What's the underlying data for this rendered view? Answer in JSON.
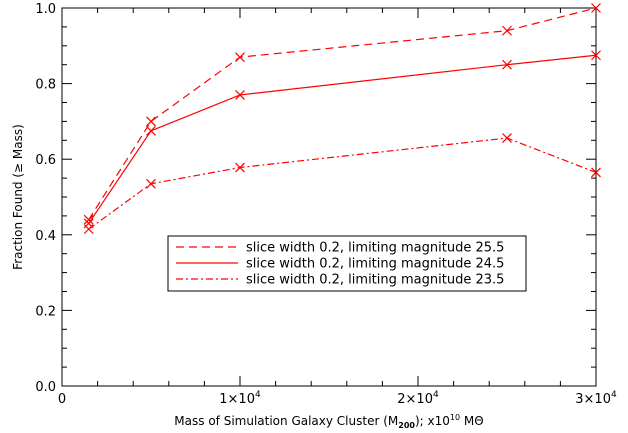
{
  "chart_data": {
    "type": "line",
    "xlabel": "Mass of Simulation Galaxy Cluster (M200); x10^10 MΘ",
    "xlabel_parts": {
      "pre": "Mass of Simulation Galaxy Cluster (M",
      "sub": "200",
      "post": "); x10",
      "sup": "10",
      "unit": " MΘ"
    },
    "ylabel": "Fraction Found (≥ Mass)",
    "xlim": [
      0,
      30000
    ],
    "ylim": [
      0.0,
      1.0
    ],
    "x_ticks": [
      {
        "value": 0,
        "label": "0",
        "exp": ""
      },
      {
        "value": 10000,
        "label": "1×10",
        "exp": "4"
      },
      {
        "value": 20000,
        "label": "2×10",
        "exp": "4"
      },
      {
        "value": 30000,
        "label": "3×10",
        "exp": "4"
      }
    ],
    "y_ticks": [
      {
        "value": 0.0,
        "label": "0.0"
      },
      {
        "value": 0.2,
        "label": "0.2"
      },
      {
        "value": 0.4,
        "label": "0.4"
      },
      {
        "value": 0.6,
        "label": "0.6"
      },
      {
        "value": 0.8,
        "label": "0.8"
      },
      {
        "value": 1.0,
        "label": "1.0"
      }
    ],
    "grid": false,
    "legend_position": "center-right",
    "color": "#ff0000",
    "marker": "x",
    "series": [
      {
        "name": "slice width 0.2, limiting magnitude 25.5",
        "line_style": "dashed",
        "x": [
          1500,
          5000,
          10000,
          25000,
          30000
        ],
        "y": [
          0.44,
          0.7,
          0.87,
          0.94,
          1.0
        ]
      },
      {
        "name": "slice width 0.2, limiting magnitude 24.5",
        "line_style": "solid",
        "x": [
          1500,
          5000,
          10000,
          25000,
          30000
        ],
        "y": [
          0.43,
          0.675,
          0.77,
          0.85,
          0.875
        ]
      },
      {
        "name": "slice width 0.2, limiting magnitude 23.5",
        "line_style": "dashdot",
        "x": [
          1500,
          5000,
          10000,
          25000,
          30000
        ],
        "y": [
          0.415,
          0.535,
          0.578,
          0.656,
          0.565
        ]
      }
    ]
  }
}
